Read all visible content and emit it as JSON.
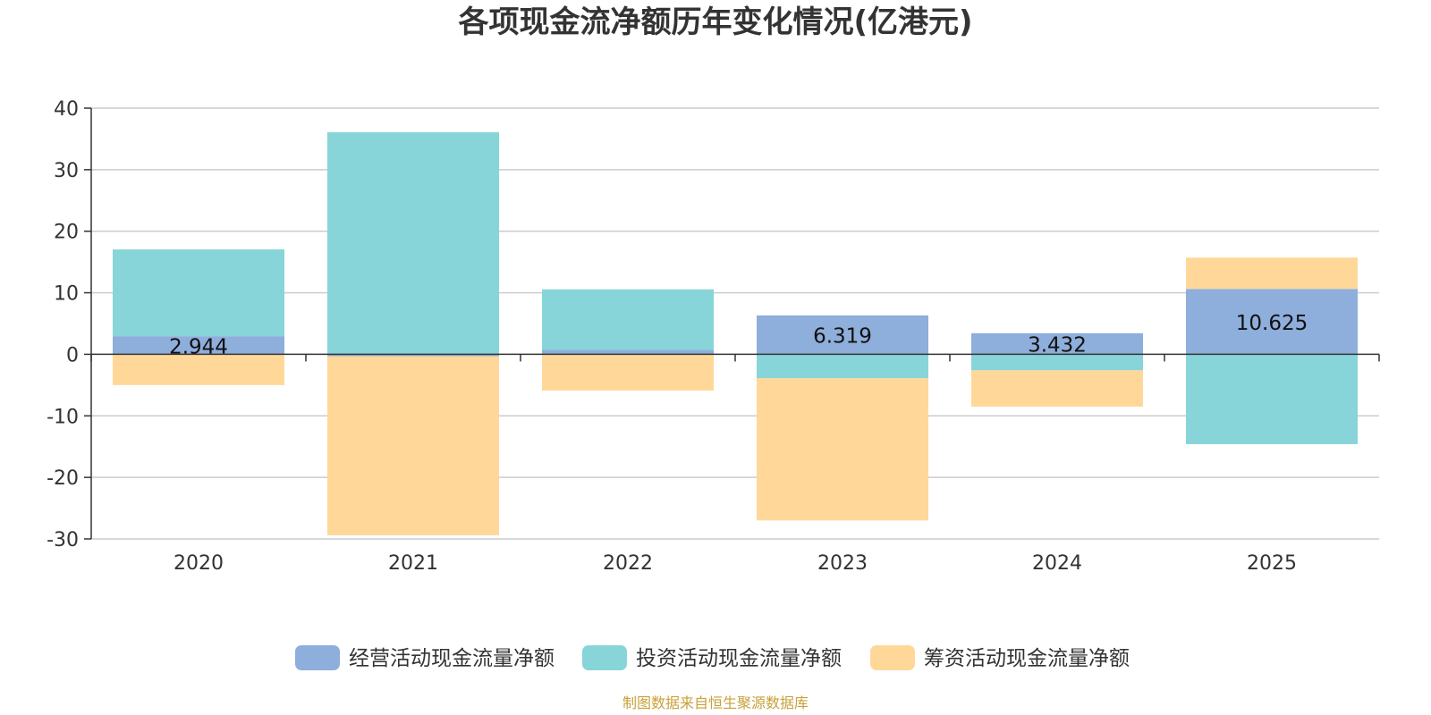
{
  "chart_data": {
    "type": "bar",
    "stacked": true,
    "title": "各项现金流净额历年变化情况(亿港元)",
    "xlabel": "",
    "ylabel": "",
    "categories": [
      "2020",
      "2021",
      "2022",
      "2023",
      "2024",
      "2025"
    ],
    "ylim": [
      -30,
      40
    ],
    "yticks": [
      40,
      30,
      20,
      10,
      0,
      -10,
      -20,
      -30
    ],
    "grid": true,
    "legend_position": "bottom",
    "series": [
      {
        "name": "经营活动现金流量净额",
        "color": "#8eaedb",
        "values": [
          2.944,
          -0.3,
          0.749,
          6.319,
          3.432,
          10.625
        ],
        "labels": [
          "2.944",
          "",
          "",
          "6.319",
          "3.432",
          "10.625"
        ]
      },
      {
        "name": "投资活动现金流量净额",
        "color": "#87d5d8",
        "values": [
          14.1,
          36.1,
          9.8,
          -3.9,
          -2.6,
          -14.6
        ],
        "labels": [
          "",
          "",
          "",
          "",
          "",
          ""
        ]
      },
      {
        "name": "筹资活动现金流量净额",
        "color": "#ffd899",
        "values": [
          -5.0,
          -29.1,
          -5.9,
          -23.1,
          -5.9,
          5.1
        ],
        "labels": [
          "",
          "",
          "",
          "",
          "",
          ""
        ]
      }
    ],
    "source": "制图数据来自恒生聚源数据库"
  }
}
